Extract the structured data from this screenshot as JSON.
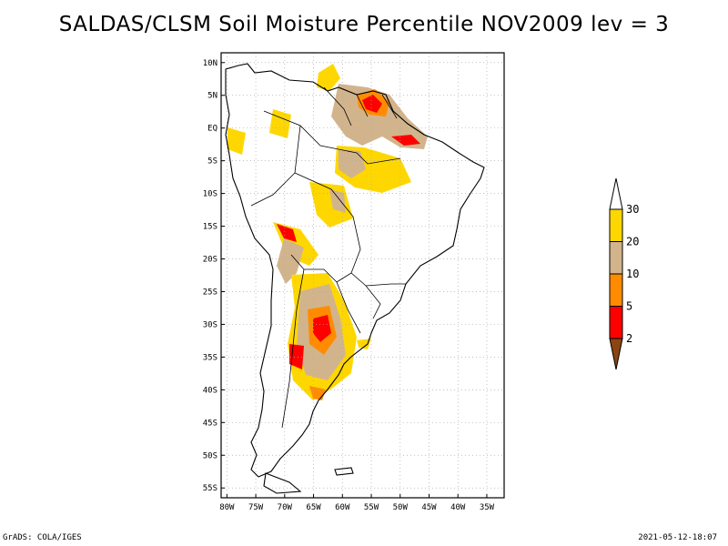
{
  "title": "SALDAS/CLSM Soil Moisture Percentile NOV2009 lev = 3",
  "footer_left": "GrADS: COLA/IGES",
  "footer_right": "2021-05-12-18:07",
  "lat_ticks": [
    {
      "v": 10,
      "label": "10N"
    },
    {
      "v": 5,
      "label": "5N"
    },
    {
      "v": 0,
      "label": "EQ"
    },
    {
      "v": -5,
      "label": "5S"
    },
    {
      "v": -10,
      "label": "10S"
    },
    {
      "v": -15,
      "label": "15S"
    },
    {
      "v": -20,
      "label": "20S"
    },
    {
      "v": -25,
      "label": "25S"
    },
    {
      "v": -30,
      "label": "30S"
    },
    {
      "v": -35,
      "label": "35S"
    },
    {
      "v": -40,
      "label": "40S"
    },
    {
      "v": -45,
      "label": "45S"
    },
    {
      "v": -50,
      "label": "50S"
    },
    {
      "v": -55,
      "label": "55S"
    }
  ],
  "lon_ticks": [
    {
      "v": -80,
      "label": "80W"
    },
    {
      "v": -75,
      "label": "75W"
    },
    {
      "v": -70,
      "label": "70W"
    },
    {
      "v": -65,
      "label": "65W"
    },
    {
      "v": -60,
      "label": "60W"
    },
    {
      "v": -55,
      "label": "55W"
    },
    {
      "v": -50,
      "label": "50W"
    },
    {
      "v": -45,
      "label": "45W"
    },
    {
      "v": -40,
      "label": "40W"
    },
    {
      "v": -35,
      "label": "35W"
    }
  ],
  "legend": {
    "colors": [
      "#8b4513",
      "#ff0000",
      "#ff8c00",
      "#d2b48c",
      "#ffd700",
      "#ffffff"
    ],
    "labels": [
      "2",
      "5",
      "10",
      "20",
      "30"
    ]
  },
  "colors": {
    "frame": "#000000",
    "grid": "#aaaaaa"
  }
}
